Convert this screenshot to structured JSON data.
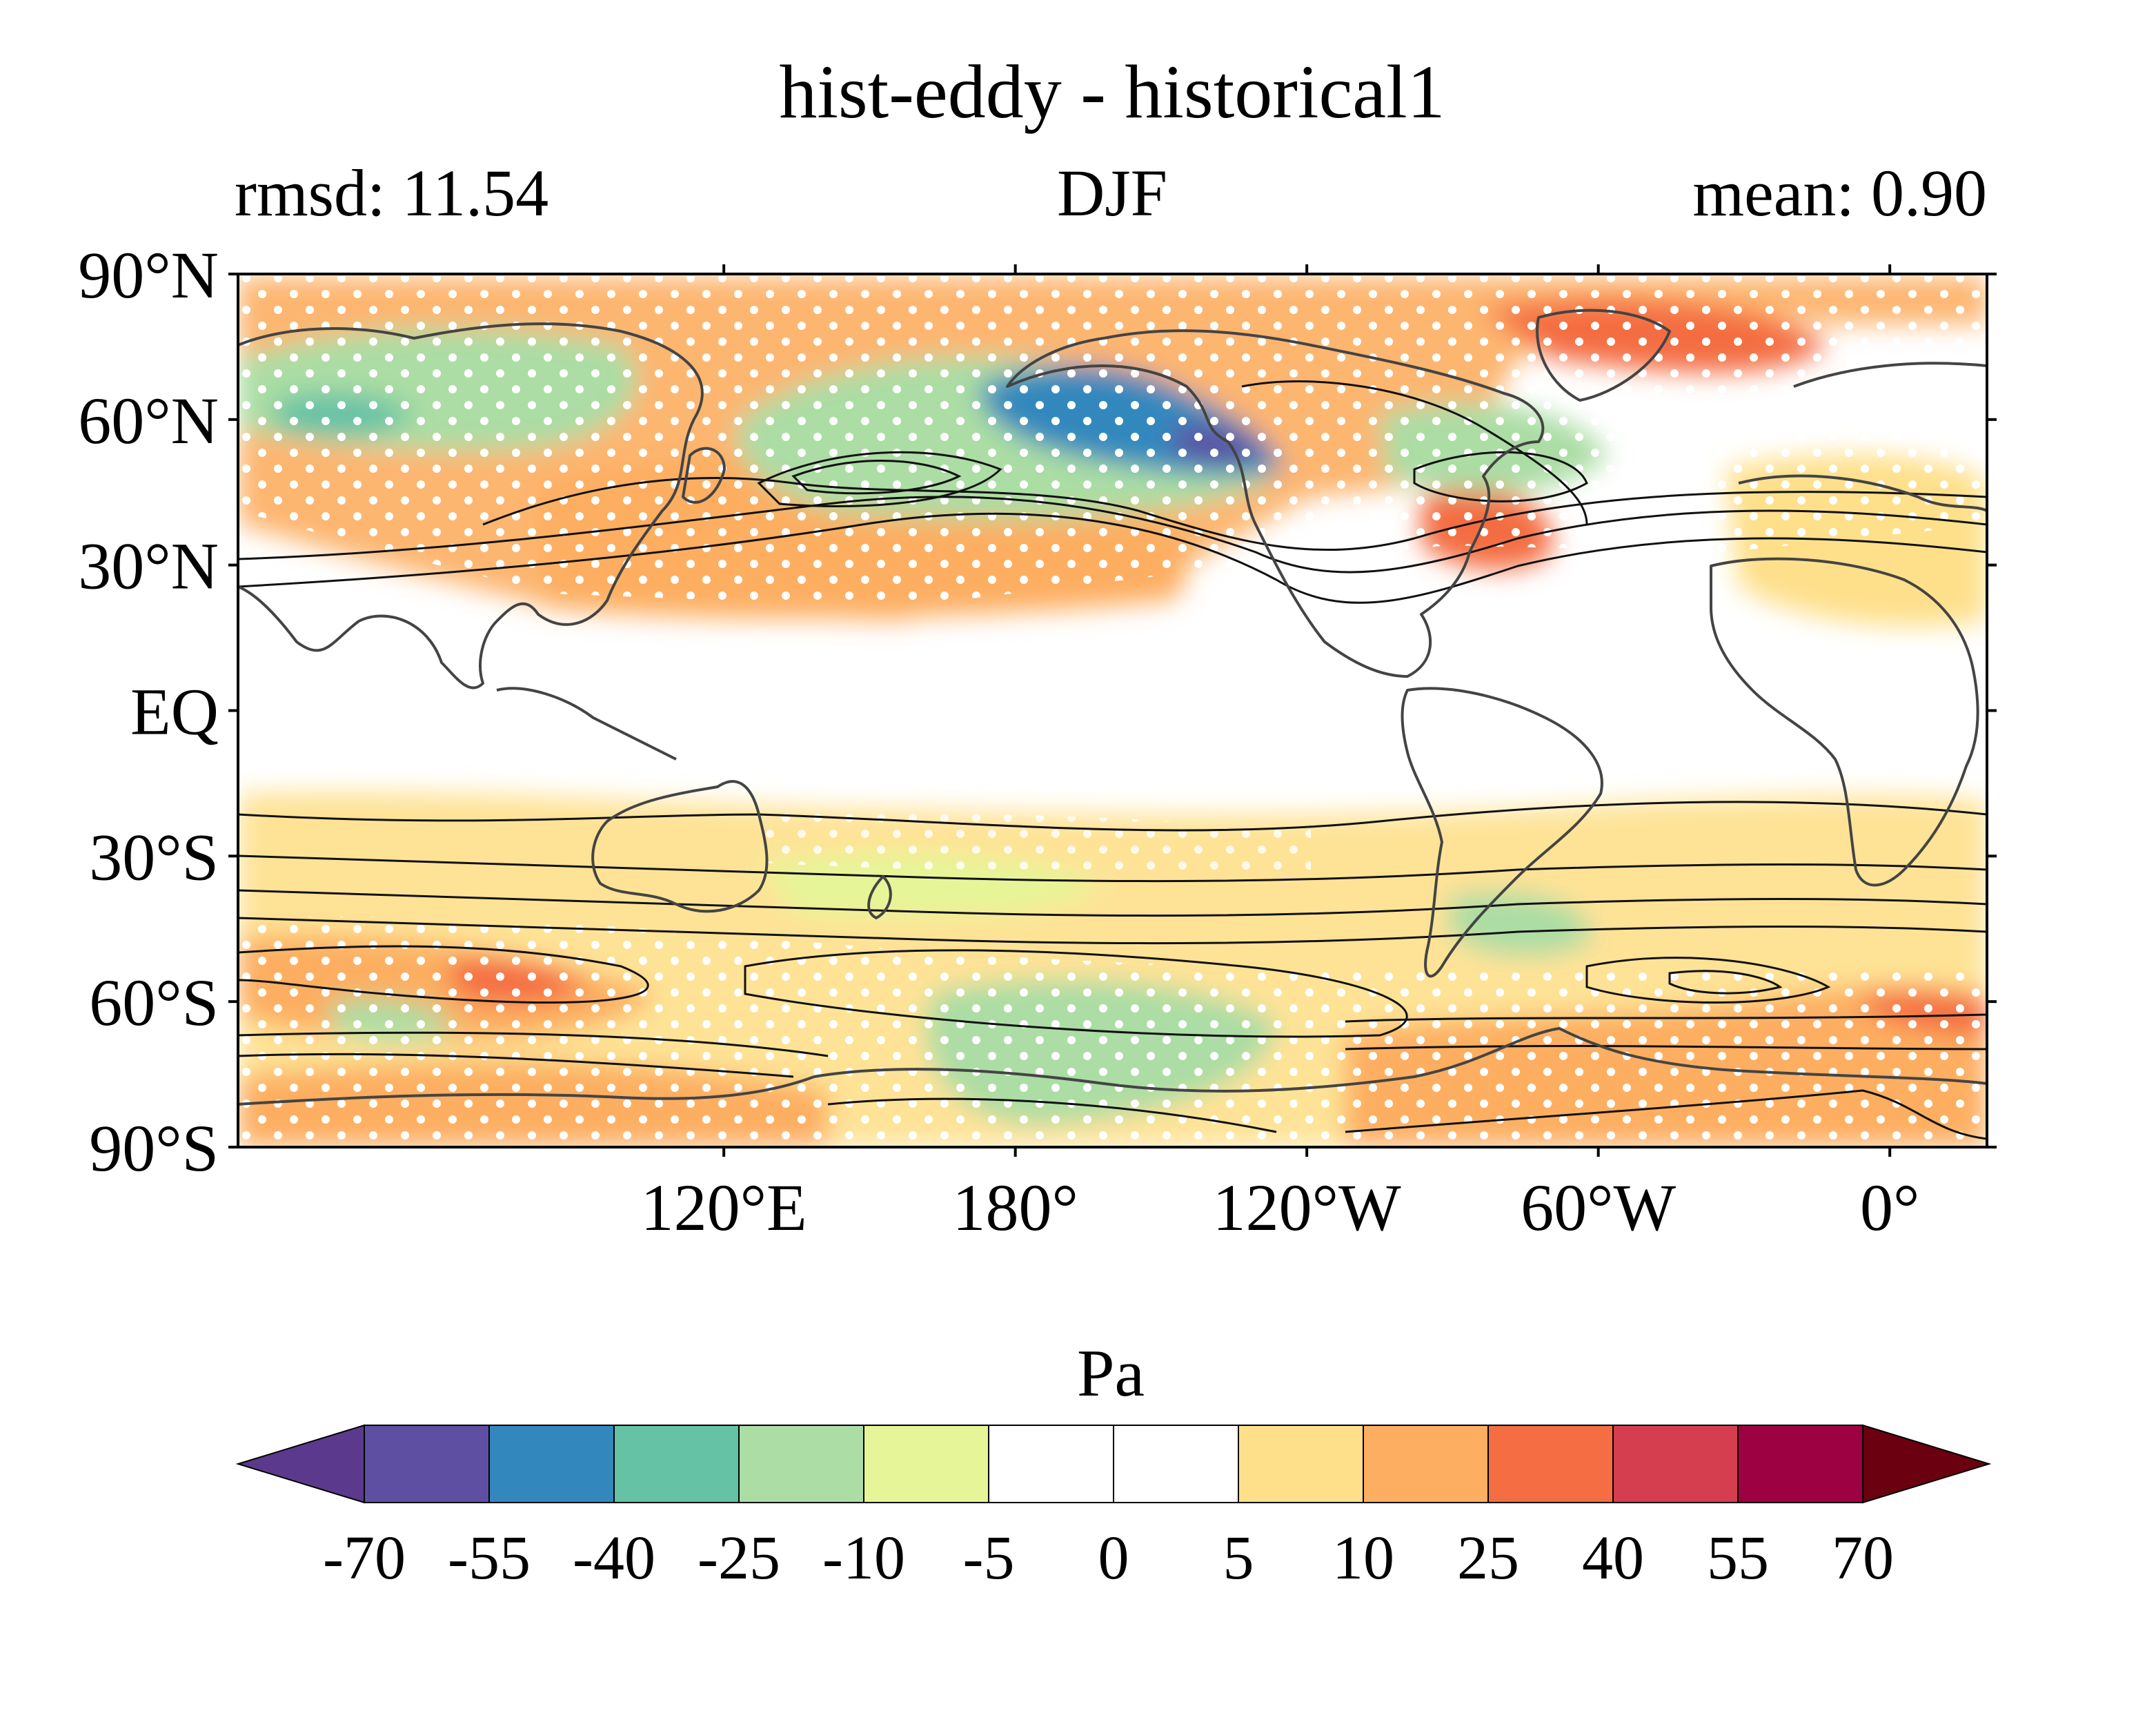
{
  "title": "hist-eddy - historical1",
  "subtitle_left": "rmsd: 11.54",
  "subtitle_center": "DJF",
  "subtitle_right": "mean: 0.90",
  "map": {
    "projection": "equirectangular",
    "central_longitude": 200,
    "lon_range": [
      20,
      380
    ],
    "lat_range": [
      -90,
      90
    ],
    "lat_ticks": [
      {
        "value": 90,
        "label": "90°N"
      },
      {
        "value": 60,
        "label": "60°N"
      },
      {
        "value": 30,
        "label": "30°N"
      },
      {
        "value": 0,
        "label": "EQ"
      },
      {
        "value": -30,
        "label": "30°S"
      },
      {
        "value": -60,
        "label": "60°S"
      },
      {
        "value": -90,
        "label": "90°S"
      }
    ],
    "lon_ticks": [
      {
        "value": 120,
        "label": "120°E"
      },
      {
        "value": 180,
        "label": "180°"
      },
      {
        "value": 240,
        "label": "120°W"
      },
      {
        "value": 300,
        "label": "60°W"
      },
      {
        "value": 360,
        "label": "0°"
      }
    ],
    "anomaly_regions": [
      {
        "name": "north-pacific-negative",
        "lon": 200,
        "lat": 58,
        "value": -45
      },
      {
        "name": "alaska-negative",
        "lon": 225,
        "lat": 57,
        "value": -60
      },
      {
        "name": "siberia-negative",
        "lon": 60,
        "lat": 60,
        "value": -25
      },
      {
        "name": "north-pacific-positive",
        "lon": 215,
        "lat": 30,
        "value": 20
      },
      {
        "name": "north-atlantic-positive",
        "lon": 315,
        "lat": 35,
        "value": 30
      },
      {
        "name": "arctic-positive",
        "lon": 340,
        "lat": 75,
        "value": 25
      },
      {
        "name": "southern-ocean-positive",
        "lon": 110,
        "lat": -58,
        "value": 35
      },
      {
        "name": "south-atlantic-positive",
        "lon": 370,
        "lat": -62,
        "value": 30
      },
      {
        "name": "antarctic-negative",
        "lon": 200,
        "lat": -70,
        "value": -15
      }
    ]
  },
  "colorbar": {
    "label": "Pa",
    "levels": [
      "-70",
      "-55",
      "-40",
      "-25",
      "-10",
      "-5",
      "0",
      "5",
      "10",
      "25",
      "40",
      "55",
      "70"
    ],
    "colors": [
      "#5e4fa2",
      "#3288bd",
      "#66c2a5",
      "#abdda4",
      "#e6f598",
      "#ffffff",
      "#ffffff",
      "#fee08b",
      "#fdae61",
      "#f46d43",
      "#d53e4f",
      "#9e0142"
    ],
    "under_color": "#5b3a8e",
    "over_color": "#6b0010",
    "extend": "both"
  }
}
